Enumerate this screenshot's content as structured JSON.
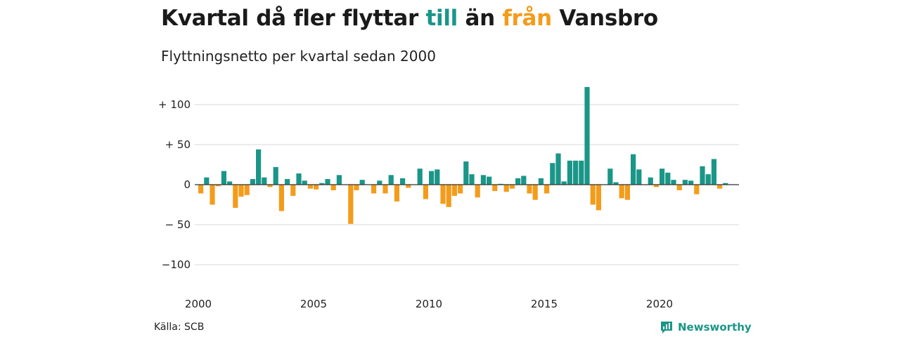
{
  "header": {
    "title_part1": "Kvartal då fler flyttar ",
    "title_to": "till",
    "title_part2": " än ",
    "title_from": "från",
    "title_part3": " Vansbro",
    "subtitle": "Flyttningsnetto per kvartal sedan 2000"
  },
  "footer": {
    "source": "Källa: SCB",
    "brand": "Newsworthy",
    "brand_icon": "newsworthy-logo-icon"
  },
  "colors": {
    "positive": "#1a9688",
    "negative": "#f39c1b",
    "grid": "#d9d9d9",
    "zero_line": "#333333"
  },
  "chart_data": {
    "type": "bar",
    "start_year": 2000,
    "quarters_per_year": 4,
    "ylim": [
      -100,
      125
    ],
    "yticks": [
      100,
      50,
      0,
      -50,
      -100
    ],
    "ytick_labels": [
      "+ 100",
      "+  50",
      "0",
      "− 50",
      "−100"
    ],
    "xticks": [
      2000,
      2005,
      2010,
      2015,
      2020
    ],
    "grid": true,
    "values": [
      -11,
      9,
      -25,
      -2,
      17,
      4,
      -29,
      -15,
      -13,
      7,
      44,
      9,
      -3,
      22,
      -33,
      7,
      -14,
      14,
      5,
      -5,
      -6,
      2,
      7,
      -7,
      12,
      0,
      -49,
      -7,
      6,
      0,
      -11,
      5,
      -11,
      12,
      -21,
      8,
      -4,
      0,
      20,
      -18,
      17,
      19,
      -24,
      -28,
      -14,
      -11,
      29,
      13,
      -16,
      12,
      10,
      -8,
      1,
      -9,
      -5,
      8,
      11,
      -11,
      -19,
      8,
      -11,
      27,
      39,
      4,
      30,
      30,
      30,
      122,
      -25,
      -32,
      0,
      20,
      3,
      -17,
      -19,
      38,
      19,
      0,
      9,
      -3,
      20,
      15,
      6,
      -7,
      6,
      5,
      -12,
      23,
      13,
      32,
      -5,
      2
    ]
  }
}
